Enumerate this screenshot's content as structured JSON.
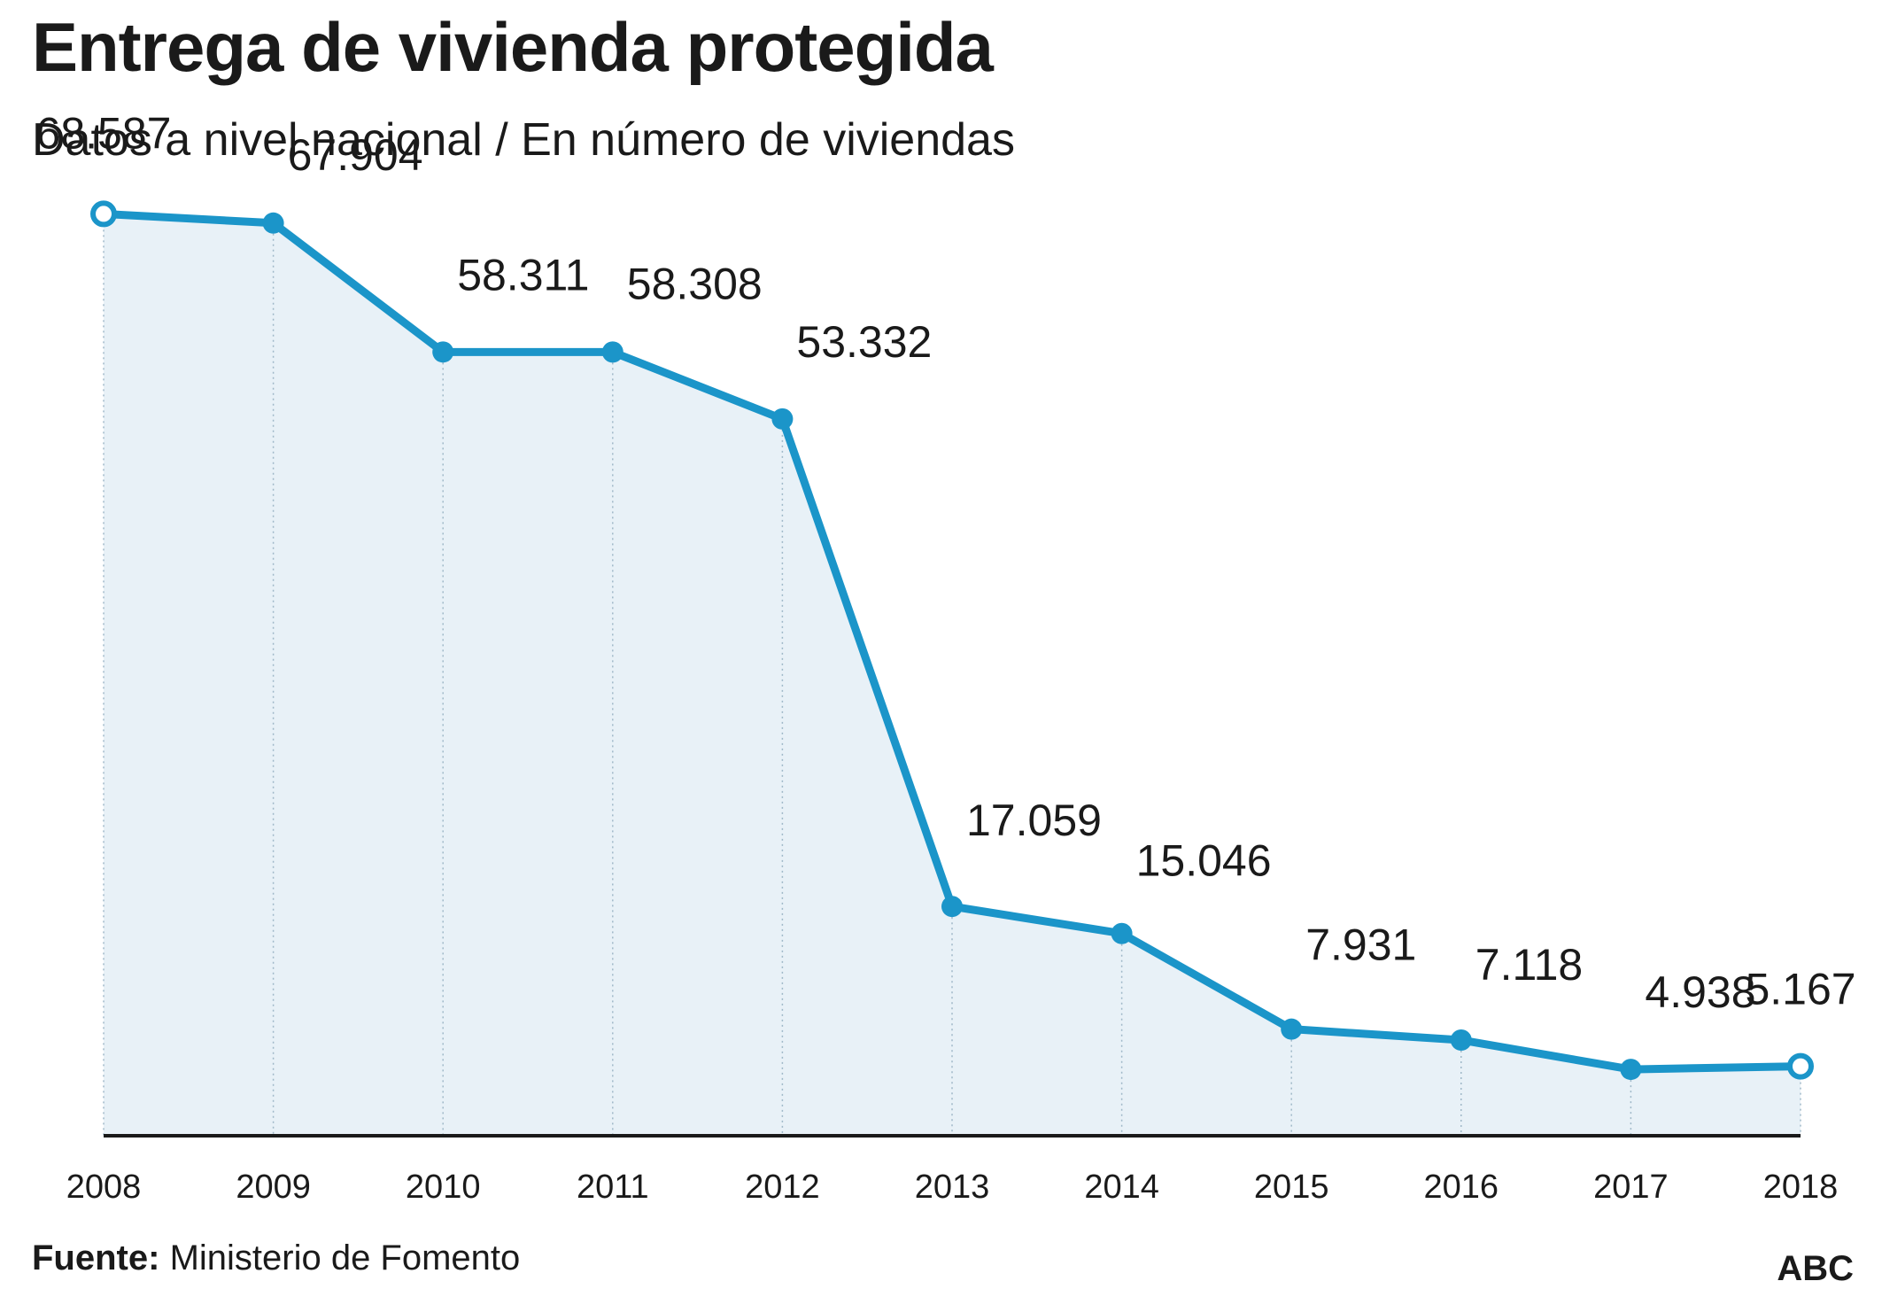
{
  "title": "Entrega de vivienda protegida",
  "subtitle": "Datos a nivel nacional / En número de viviendas",
  "source_label": "Fuente:",
  "source_text": "Ministerio de Fomento",
  "brand": "ABC",
  "colors": {
    "line": "#1b95c9",
    "area": "#e8f1f7",
    "axis": "#1a1a1a",
    "guide": "#9fb8c8"
  },
  "chart_data": {
    "type": "line",
    "title": "Entrega de vivienda protegida",
    "subtitle": "Datos a nivel nacional / En número de viviendas",
    "categories": [
      "2008",
      "2009",
      "2010",
      "2011",
      "2012",
      "2013",
      "2014",
      "2015",
      "2016",
      "2017",
      "2018"
    ],
    "values": [
      68587,
      67904,
      58311,
      58308,
      53332,
      17059,
      15046,
      7931,
      7118,
      4938,
      5167
    ],
    "labels": [
      "68.587",
      "67.904",
      "58.311",
      "58.308",
      "53.332",
      "17.059",
      "15.046",
      "7.931",
      "7.118",
      "4.938",
      "5.167"
    ],
    "ylim": [
      0,
      70000
    ],
    "grid": false,
    "legend": "none"
  }
}
